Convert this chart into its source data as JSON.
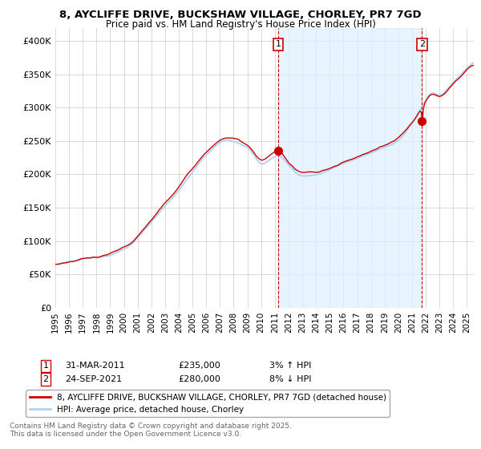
{
  "title_line1": "8, AYCLIFFE DRIVE, BUCKSHAW VILLAGE, CHORLEY, PR7 7GD",
  "title_line2": "Price paid vs. HM Land Registry's House Price Index (HPI)",
  "ylabel_ticks": [
    "£0",
    "£50K",
    "£100K",
    "£150K",
    "£200K",
    "£250K",
    "£300K",
    "£350K",
    "£400K"
  ],
  "ytick_values": [
    0,
    50000,
    100000,
    150000,
    200000,
    250000,
    300000,
    350000,
    400000
  ],
  "ylim": [
    0,
    420000
  ],
  "xlim_start": 1995.0,
  "xlim_end": 2025.5,
  "hpi_color": "#aad4f5",
  "price_color": "#cc0000",
  "shade_color": "#ddeeff",
  "sale1_date": "31-MAR-2011",
  "sale1_price": 235000,
  "sale1_pct": "3%",
  "sale1_dir": "↑",
  "sale1_label": "1",
  "sale1_x": 2011.25,
  "sale2_date": "24-SEP-2021",
  "sale2_price": 280000,
  "sale2_pct": "8%",
  "sale2_dir": "↓",
  "sale2_label": "2",
  "sale2_x": 2021.73,
  "legend_line1": "8, AYCLIFFE DRIVE, BUCKSHAW VILLAGE, CHORLEY, PR7 7GD (detached house)",
  "legend_line2": "HPI: Average price, detached house, Chorley",
  "footer": "Contains HM Land Registry data © Crown copyright and database right 2025.\nThis data is licensed under the Open Government Licence v3.0.",
  "background_color": "#ffffff",
  "grid_color": "#cccccc"
}
